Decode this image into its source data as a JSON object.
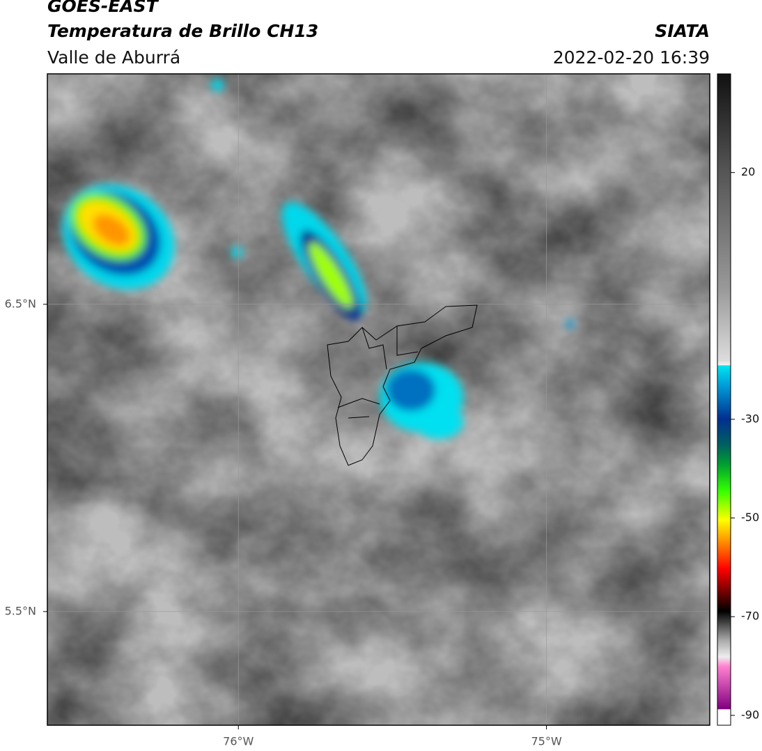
{
  "header": {
    "title": "GOES-EAST",
    "subtitle": "Temperatura de Brillo CH13",
    "region": "Valle de Aburrá",
    "source": "SIATA",
    "datetime": "2022-02-20 16:39"
  },
  "map": {
    "xlim": [
      -76.62,
      -74.47
    ],
    "ylim": [
      5.13,
      7.25
    ],
    "xticks": [
      {
        "value": -76,
        "label": "76°W"
      },
      {
        "value": -75,
        "label": "75°W"
      }
    ],
    "yticks": [
      {
        "value": 6.5,
        "label": "6.5°N"
      },
      {
        "value": 5.5,
        "label": "5.5°N"
      }
    ]
  },
  "colorbar": {
    "lim": [
      -92,
      40
    ],
    "ticks": [
      20,
      -30,
      -50,
      -70,
      -90
    ]
  }
}
